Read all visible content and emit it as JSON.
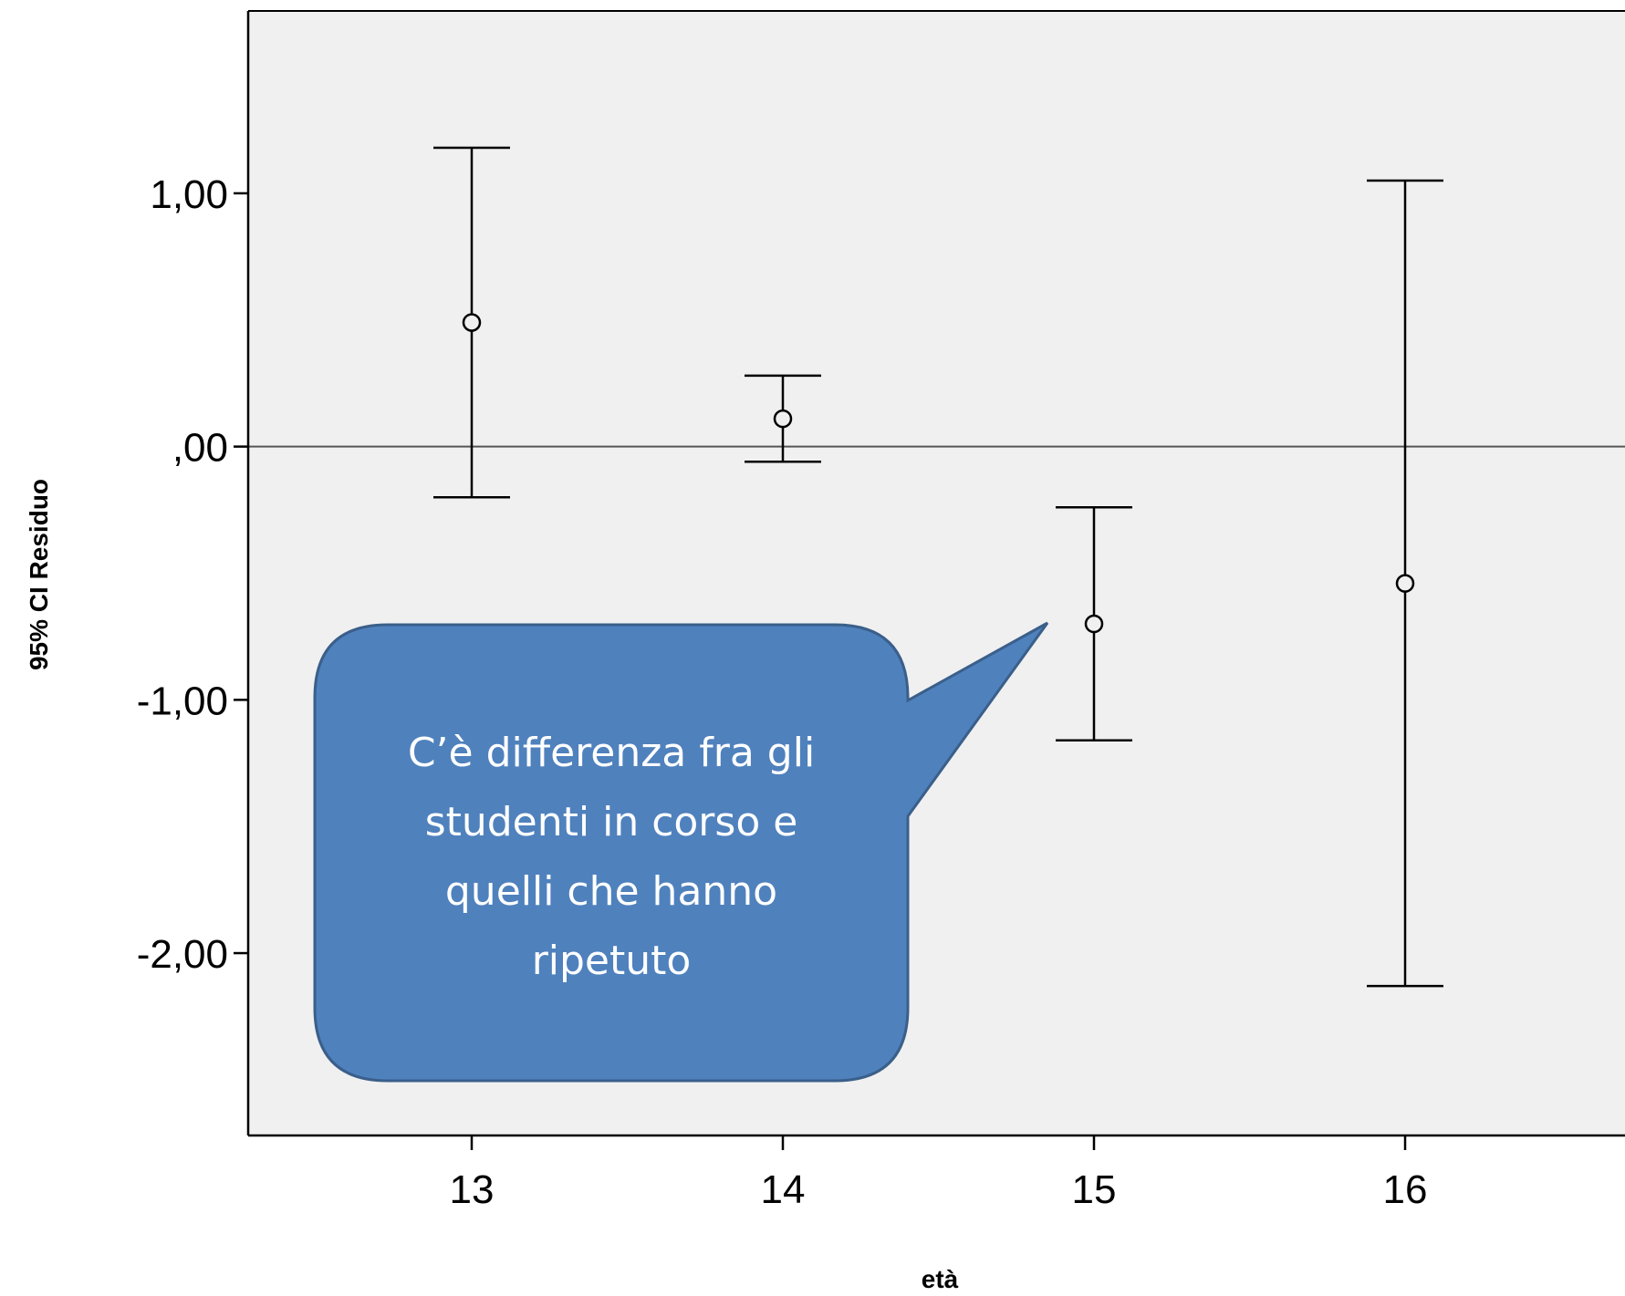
{
  "chart_data": {
    "type": "errorbar",
    "title": "",
    "xlabel": "età",
    "ylabel": "95% CI Residuo",
    "categories": [
      "13",
      "14",
      "15",
      "16"
    ],
    "series": [
      {
        "means": [
          0.49,
          0.11,
          -0.7,
          -0.54
        ],
        "lower": [
          -0.2,
          -0.06,
          -1.16,
          -2.13
        ],
        "upper": [
          1.18,
          0.28,
          -0.24,
          1.05
        ]
      }
    ],
    "ylim": [
      -2.72,
      1.72
    ],
    "yticks": [
      1.0,
      0.0,
      -1.0,
      -2.0
    ],
    "ytick_labels": [
      "1,00",
      ",00",
      "-1,00",
      "-2,00"
    ],
    "reference_line": 0.0,
    "grid": false,
    "legend": "none",
    "annotation": {
      "lines": [
        "C’è differenza fra gli",
        "studenti in corso e",
        "quelli che hanno",
        "ripetuto"
      ],
      "points_to_category": "15"
    }
  },
  "colors": {
    "plot_background": "#f0f0f0",
    "axis": "#000000",
    "error_bar": "#000000",
    "reference_line": "#555555",
    "callout_fill": "#4f81bd",
    "callout_border": "#3a5f8a",
    "callout_text": "#ffffff"
  }
}
